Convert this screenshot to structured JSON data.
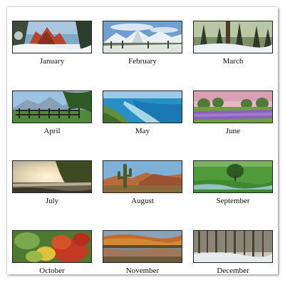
{
  "calendar": {
    "months": [
      {
        "name": "January",
        "scene": "red-rocks-snow"
      },
      {
        "name": "February",
        "scene": "snowy-mountains"
      },
      {
        "name": "March",
        "scene": "snowy-forest"
      },
      {
        "name": "April",
        "scene": "fence-mountains"
      },
      {
        "name": "May",
        "scene": "ocean-coast"
      },
      {
        "name": "June",
        "scene": "lavender-field"
      },
      {
        "name": "July",
        "scene": "sunset-lake"
      },
      {
        "name": "August",
        "scene": "desert-cactus"
      },
      {
        "name": "September",
        "scene": "green-meadow-tree"
      },
      {
        "name": "October",
        "scene": "autumn-leaves"
      },
      {
        "name": "November",
        "scene": "autumn-lake"
      },
      {
        "name": "December",
        "scene": "winter-woods"
      }
    ]
  }
}
